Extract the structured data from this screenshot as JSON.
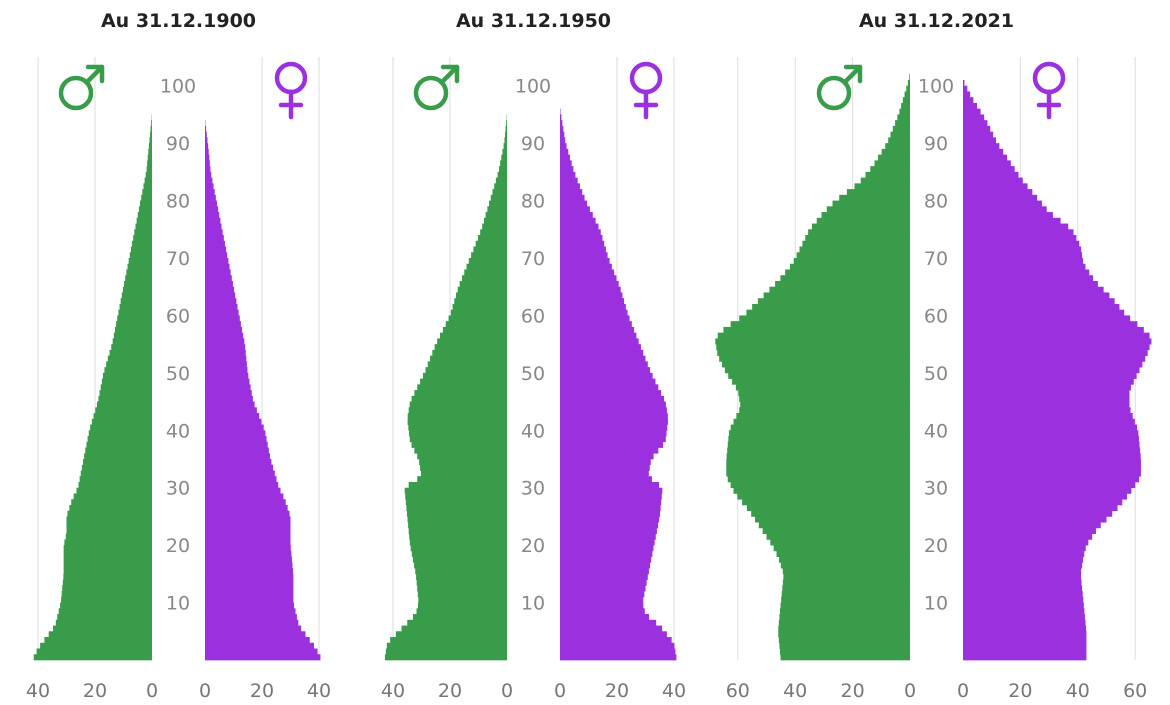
{
  "colors": {
    "male": "#399c4b",
    "female": "#9b30df",
    "grid": "#dddddd",
    "text": "#222222",
    "tick": "#777777"
  },
  "chart_data": [
    {
      "type": "bar",
      "orientation": "population-pyramid",
      "title": "Au 31.12.1900",
      "male_symbol": "♂",
      "female_symbol": "♀",
      "age_ticks": [
        "10",
        "20",
        "30",
        "40",
        "50",
        "60",
        "70",
        "80",
        "90",
        "100"
      ],
      "male_ticks": [
        "40",
        "20",
        "0"
      ],
      "female_ticks": [
        "0",
        "20",
        "40"
      ],
      "xlim": [
        0,
        40
      ],
      "male_profile": [
        [
          0,
          42
        ],
        [
          2,
          40
        ],
        [
          4,
          37
        ],
        [
          6,
          34
        ],
        [
          8,
          33
        ],
        [
          10,
          32
        ],
        [
          15,
          31
        ],
        [
          20,
          31
        ],
        [
          22,
          30
        ],
        [
          25,
          30
        ],
        [
          28,
          28
        ],
        [
          30,
          26
        ],
        [
          35,
          24
        ],
        [
          40,
          22
        ],
        [
          45,
          19
        ],
        [
          50,
          17
        ],
        [
          55,
          14
        ],
        [
          60,
          12
        ],
        [
          65,
          10
        ],
        [
          70,
          8
        ],
        [
          75,
          6
        ],
        [
          80,
          4
        ],
        [
          85,
          2
        ],
        [
          90,
          1
        ],
        [
          95,
          0
        ]
      ],
      "female_profile": [
        [
          0,
          41
        ],
        [
          2,
          39
        ],
        [
          4,
          36
        ],
        [
          6,
          33
        ],
        [
          8,
          32
        ],
        [
          10,
          31
        ],
        [
          15,
          31
        ],
        [
          20,
          30
        ],
        [
          22,
          30
        ],
        [
          25,
          30
        ],
        [
          28,
          28
        ],
        [
          30,
          26
        ],
        [
          35,
          23
        ],
        [
          40,
          21
        ],
        [
          45,
          17
        ],
        [
          50,
          15
        ],
        [
          55,
          14
        ],
        [
          60,
          12
        ],
        [
          65,
          10
        ],
        [
          70,
          8
        ],
        [
          75,
          6
        ],
        [
          80,
          4
        ],
        [
          85,
          2
        ],
        [
          90,
          1
        ],
        [
          94,
          0
        ]
      ]
    },
    {
      "type": "bar",
      "orientation": "population-pyramid",
      "title": "Au 31.12.1950",
      "male_symbol": "♂",
      "female_symbol": "♀",
      "age_ticks": [
        "10",
        "20",
        "30",
        "40",
        "50",
        "60",
        "70",
        "80",
        "90",
        "100"
      ],
      "male_ticks": [
        "40",
        "20",
        "0"
      ],
      "female_ticks": [
        "0",
        "20",
        "40"
      ],
      "xlim": [
        0,
        40
      ],
      "male_profile": [
        [
          0,
          43
        ],
        [
          3,
          42
        ],
        [
          6,
          36
        ],
        [
          8,
          32
        ],
        [
          10,
          31
        ],
        [
          15,
          32
        ],
        [
          20,
          34
        ],
        [
          25,
          35
        ],
        [
          30,
          36
        ],
        [
          32,
          30
        ],
        [
          35,
          31
        ],
        [
          38,
          34
        ],
        [
          42,
          35
        ],
        [
          45,
          34
        ],
        [
          48,
          31
        ],
        [
          50,
          29
        ],
        [
          55,
          25
        ],
        [
          60,
          20
        ],
        [
          65,
          17
        ],
        [
          70,
          13
        ],
        [
          75,
          9
        ],
        [
          80,
          6
        ],
        [
          85,
          3
        ],
        [
          90,
          1
        ],
        [
          95,
          0
        ]
      ],
      "female_profile": [
        [
          0,
          41
        ],
        [
          3,
          40
        ],
        [
          6,
          35
        ],
        [
          8,
          30
        ],
        [
          10,
          29
        ],
        [
          15,
          31
        ],
        [
          20,
          33
        ],
        [
          25,
          35
        ],
        [
          30,
          36
        ],
        [
          32,
          31
        ],
        [
          35,
          32
        ],
        [
          38,
          37
        ],
        [
          42,
          38
        ],
        [
          45,
          37
        ],
        [
          48,
          34
        ],
        [
          50,
          32
        ],
        [
          55,
          28
        ],
        [
          60,
          24
        ],
        [
          65,
          21
        ],
        [
          70,
          17
        ],
        [
          75,
          14
        ],
        [
          80,
          9
        ],
        [
          85,
          5
        ],
        [
          90,
          2
        ],
        [
          96,
          0
        ]
      ]
    },
    {
      "type": "bar",
      "orientation": "population-pyramid",
      "title": "Au 31.12.2021",
      "male_symbol": "♂",
      "female_symbol": "♀",
      "age_ticks": [
        "10",
        "20",
        "30",
        "40",
        "50",
        "60",
        "70",
        "80",
        "90",
        "100"
      ],
      "male_ticks": [
        "60",
        "40",
        "20",
        "0"
      ],
      "female_ticks": [
        "0",
        "20",
        "40",
        "60"
      ],
      "xlim": [
        0,
        60
      ],
      "male_profile": [
        [
          0,
          45
        ],
        [
          5,
          46
        ],
        [
          10,
          45
        ],
        [
          15,
          44
        ],
        [
          18,
          46
        ],
        [
          20,
          48
        ],
        [
          23,
          52
        ],
        [
          26,
          56
        ],
        [
          29,
          61
        ],
        [
          32,
          64
        ],
        [
          35,
          64
        ],
        [
          40,
          63
        ],
        [
          44,
          59
        ],
        [
          47,
          60
        ],
        [
          50,
          64
        ],
        [
          53,
          67
        ],
        [
          56,
          68
        ],
        [
          58,
          64
        ],
        [
          60,
          58
        ],
        [
          63,
          52
        ],
        [
          66,
          46
        ],
        [
          69,
          41
        ],
        [
          72,
          38
        ],
        [
          75,
          35
        ],
        [
          78,
          30
        ],
        [
          80,
          26
        ],
        [
          83,
          18
        ],
        [
          86,
          13
        ],
        [
          90,
          8
        ],
        [
          95,
          4
        ],
        [
          100,
          1
        ],
        [
          102,
          0
        ]
      ],
      "female_profile": [
        [
          0,
          43
        ],
        [
          5,
          43
        ],
        [
          10,
          42
        ],
        [
          15,
          41
        ],
        [
          18,
          42
        ],
        [
          20,
          43
        ],
        [
          23,
          47
        ],
        [
          26,
          53
        ],
        [
          29,
          58
        ],
        [
          32,
          62
        ],
        [
          35,
          62
        ],
        [
          40,
          61
        ],
        [
          44,
          58
        ],
        [
          47,
          58
        ],
        [
          50,
          61
        ],
        [
          53,
          64
        ],
        [
          56,
          66
        ],
        [
          58,
          62
        ],
        [
          60,
          57
        ],
        [
          63,
          52
        ],
        [
          66,
          46
        ],
        [
          69,
          42
        ],
        [
          72,
          41
        ],
        [
          75,
          38
        ],
        [
          78,
          30
        ],
        [
          81,
          25
        ],
        [
          84,
          20
        ],
        [
          87,
          16
        ],
        [
          90,
          12
        ],
        [
          94,
          8
        ],
        [
          98,
          3
        ],
        [
          101,
          0
        ]
      ]
    }
  ]
}
